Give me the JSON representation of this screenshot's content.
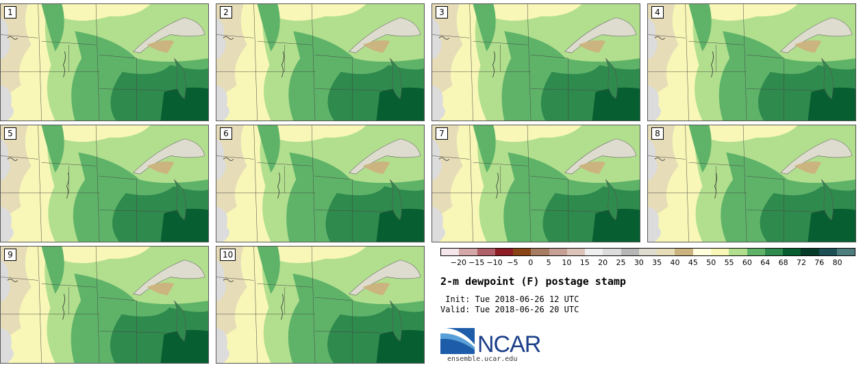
{
  "panels": [
    {
      "label": "1"
    },
    {
      "label": "2"
    },
    {
      "label": "3"
    },
    {
      "label": "4"
    },
    {
      "label": "5"
    },
    {
      "label": "6"
    },
    {
      "label": "7"
    },
    {
      "label": "8"
    },
    {
      "label": "9"
    },
    {
      "label": "10"
    }
  ],
  "legend": {
    "colors": [
      "#f4e6ea",
      "#d3a6a8",
      "#b06068",
      "#8e1c24",
      "#8a4416",
      "#a67c62",
      "#c6a094",
      "#ddc4bb",
      "#efefef",
      "#dcdcdc",
      "#b6b6b6",
      "#dedcce",
      "#e6dcb8",
      "#cbb47f",
      "#fefedd",
      "#f8f7b7",
      "#b2df8e",
      "#5fb369",
      "#2f8a4d",
      "#075e31",
      "#053b29",
      "#1c5055",
      "#4d7d7d"
    ],
    "ticks": [
      "−20",
      "−15",
      "−10",
      "−5",
      "0",
      "5",
      "10",
      "15",
      "20",
      "25",
      "30",
      "35",
      "40",
      "45",
      "50",
      "55",
      "60",
      "64",
      "68",
      "72",
      "76",
      "80"
    ]
  },
  "title": "2-m dewpoint (F) postage stamp",
  "init": " Init: Tue 2018-06-26 12 UTC",
  "valid": "Valid: Tue 2018-06-26 20 UTC",
  "logo": {
    "text": "NCAR",
    "url": "ensemble.ucar.edu"
  }
}
